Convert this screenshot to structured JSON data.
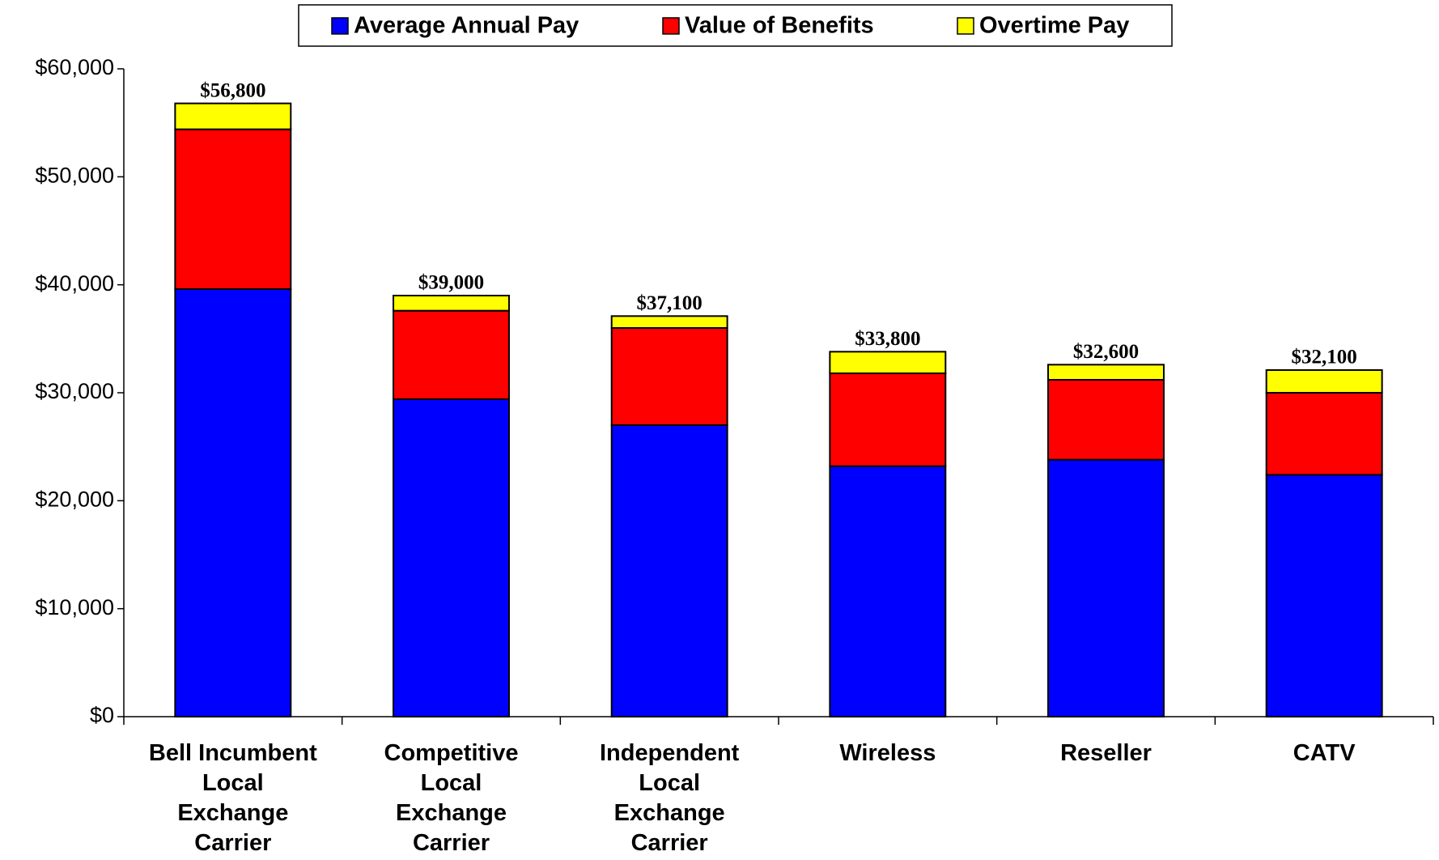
{
  "chart_data": {
    "type": "stacked_bar",
    "categories": [
      "Bell Incumbent\nLocal\nExchange\nCarrier",
      "Competitive\nLocal\nExchange\nCarrier",
      "Independent\nLocal\nExchange\nCarrier",
      "Wireless",
      "Reseller",
      "CATV"
    ],
    "series": [
      {
        "name": "Average Annual Pay",
        "color": "#0000ff",
        "values": [
          39600,
          29400,
          27000,
          23200,
          23800,
          22400
        ]
      },
      {
        "name": "Value of Benefits",
        "color": "#ff0000",
        "values": [
          14800,
          8200,
          9000,
          8600,
          7400,
          7600
        ]
      },
      {
        "name": "Overtime Pay",
        "color": "#ffff00",
        "values": [
          2400,
          1400,
          1100,
          2000,
          1400,
          2100
        ]
      }
    ],
    "totals": [
      56800,
      39000,
      37100,
      33800,
      32600,
      32100
    ],
    "total_labels": [
      "$56,800",
      "$39,000",
      "$37,100",
      "$33,800",
      "$32,600",
      "$32,100"
    ],
    "ylim": [
      0,
      60000
    ],
    "yticks": [
      {
        "value": 0,
        "label": "$0"
      },
      {
        "value": 10000,
        "label": "$10,000"
      },
      {
        "value": 20000,
        "label": "$20,000"
      },
      {
        "value": 30000,
        "label": "$30,000"
      },
      {
        "value": 40000,
        "label": "$40,000"
      },
      {
        "value": 50000,
        "label": "$50,000"
      },
      {
        "value": 60000,
        "label": "$60,000"
      }
    ],
    "legend": "top"
  }
}
